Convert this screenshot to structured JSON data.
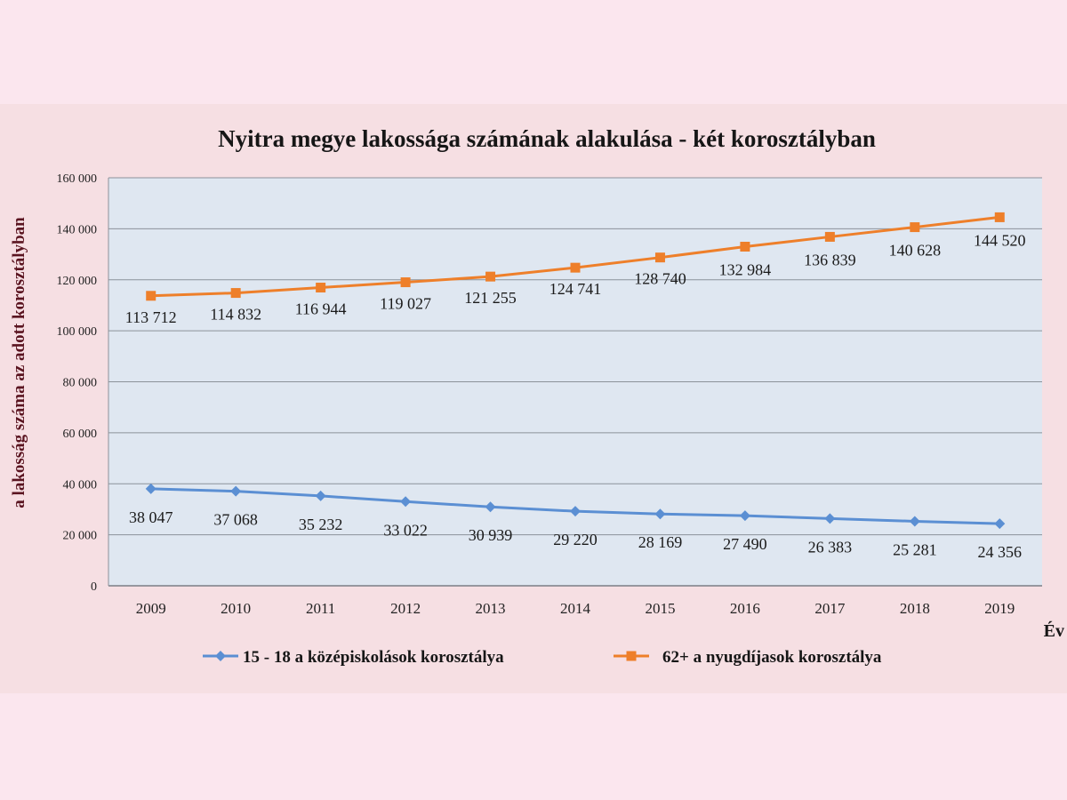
{
  "chart_data": {
    "type": "line",
    "title": "Nyitra megye lakossága számának alakulása - két korosztályban",
    "xlabel": "Év",
    "ylabel": "a lakosság száma az adott korosztályban",
    "categories": [
      "2009",
      "2010",
      "2011",
      "2012",
      "2013",
      "2014",
      "2015",
      "2016",
      "2017",
      "2018",
      "2019"
    ],
    "ylim": [
      0,
      160000
    ],
    "yticks": [
      0,
      20000,
      40000,
      60000,
      80000,
      100000,
      120000,
      140000,
      160000
    ],
    "ytick_labels": [
      "0",
      "20 000",
      "40 000",
      "60 000",
      "80 000",
      "100 000",
      "120 000",
      "140 000",
      "160 000"
    ],
    "grid": true,
    "legend_position": "bottom",
    "series": [
      {
        "name": "15 - 18 a középiskolások korosztálya",
        "color": "#5b8fd3",
        "marker": "diamond",
        "values": [
          38047,
          37068,
          35232,
          33022,
          30939,
          29220,
          28169,
          27490,
          26383,
          25281,
          24356
        ],
        "labels": [
          "38 047",
          "37 068",
          "35 232",
          "33 022",
          "30 939",
          "29 220",
          "28 169",
          "27 490",
          "26 383",
          "25 281",
          "24 356"
        ]
      },
      {
        "name": "62+  a nyugdíjasok korosztálya",
        "color": "#ee7f2a",
        "marker": "square",
        "values": [
          113712,
          114832,
          116944,
          119027,
          121255,
          124741,
          128740,
          132984,
          136839,
          140628,
          144520
        ],
        "labels": [
          "113 712",
          "114 832",
          "116 944",
          "119 027",
          "121 255",
          "124 741",
          "128 740",
          "132 984",
          "136 839",
          "140 628",
          "144 520"
        ]
      }
    ]
  }
}
